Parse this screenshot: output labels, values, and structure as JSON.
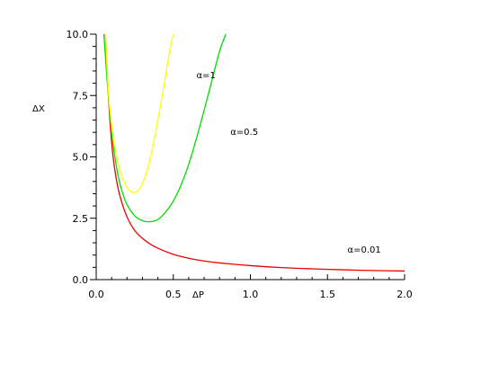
{
  "chart_data": {
    "type": "line",
    "title": "",
    "xlabel": "ΔP",
    "ylabel": "ΔX",
    "xlim": [
      0.0,
      2.0
    ],
    "ylim": [
      0.0,
      10.0
    ],
    "x_ticks": [
      0.0,
      0.5,
      1.0,
      1.5,
      2.0
    ],
    "x_tick_labels": [
      "0.0",
      "0.5",
      "1.0",
      "1.5",
      "2.0"
    ],
    "y_ticks": [
      0.0,
      2.5,
      5.0,
      7.5,
      10.0
    ],
    "y_tick_labels": [
      "0.0",
      "2.5",
      "5.0",
      "7.5",
      "10.0"
    ],
    "grid": false,
    "legend": "none",
    "series": [
      {
        "name": "α=1",
        "color": "#ffff00",
        "x": [
          0.06,
          0.08,
          0.1,
          0.12,
          0.15,
          0.18,
          0.21,
          0.24,
          0.27,
          0.3,
          0.33,
          0.36,
          0.39,
          0.42,
          0.45,
          0.48,
          0.5
        ],
        "y": [
          10.0,
          7.6,
          6.3,
          5.4,
          4.55,
          4.0,
          3.68,
          3.55,
          3.62,
          3.9,
          4.45,
          5.2,
          6.15,
          7.2,
          8.3,
          9.45,
          10.0
        ]
      },
      {
        "name": "α=0.5",
        "color": "#00dd00",
        "x": [
          0.05,
          0.07,
          0.09,
          0.11,
          0.14,
          0.17,
          0.2,
          0.25,
          0.3,
          0.35,
          0.4,
          0.45,
          0.5,
          0.55,
          0.6,
          0.65,
          0.7,
          0.75,
          0.8,
          0.84
        ],
        "y": [
          10.0,
          8.2,
          6.7,
          5.5,
          4.3,
          3.55,
          3.05,
          2.6,
          2.4,
          2.36,
          2.45,
          2.75,
          3.2,
          3.85,
          4.7,
          5.75,
          6.9,
          8.1,
          9.3,
          10.0
        ]
      },
      {
        "name": "α=0.01",
        "color": "#ee0000",
        "x": [
          0.06,
          0.08,
          0.1,
          0.12,
          0.15,
          0.2,
          0.25,
          0.3,
          0.35,
          0.4,
          0.5,
          0.6,
          0.7,
          0.8,
          1.0,
          1.2,
          1.4,
          1.6,
          1.8,
          2.0
        ],
        "y": [
          10.0,
          7.4,
          5.6,
          4.5,
          3.5,
          2.55,
          2.0,
          1.68,
          1.45,
          1.28,
          1.03,
          0.87,
          0.76,
          0.68,
          0.57,
          0.49,
          0.44,
          0.4,
          0.37,
          0.35
        ]
      }
    ],
    "annotations": [
      {
        "text": "α=1",
        "x": 0.65,
        "y": 8.2
      },
      {
        "text": "α=0.5",
        "x": 0.87,
        "y": 5.9
      },
      {
        "text": "α=0.01",
        "x": 1.63,
        "y": 1.1
      }
    ]
  }
}
